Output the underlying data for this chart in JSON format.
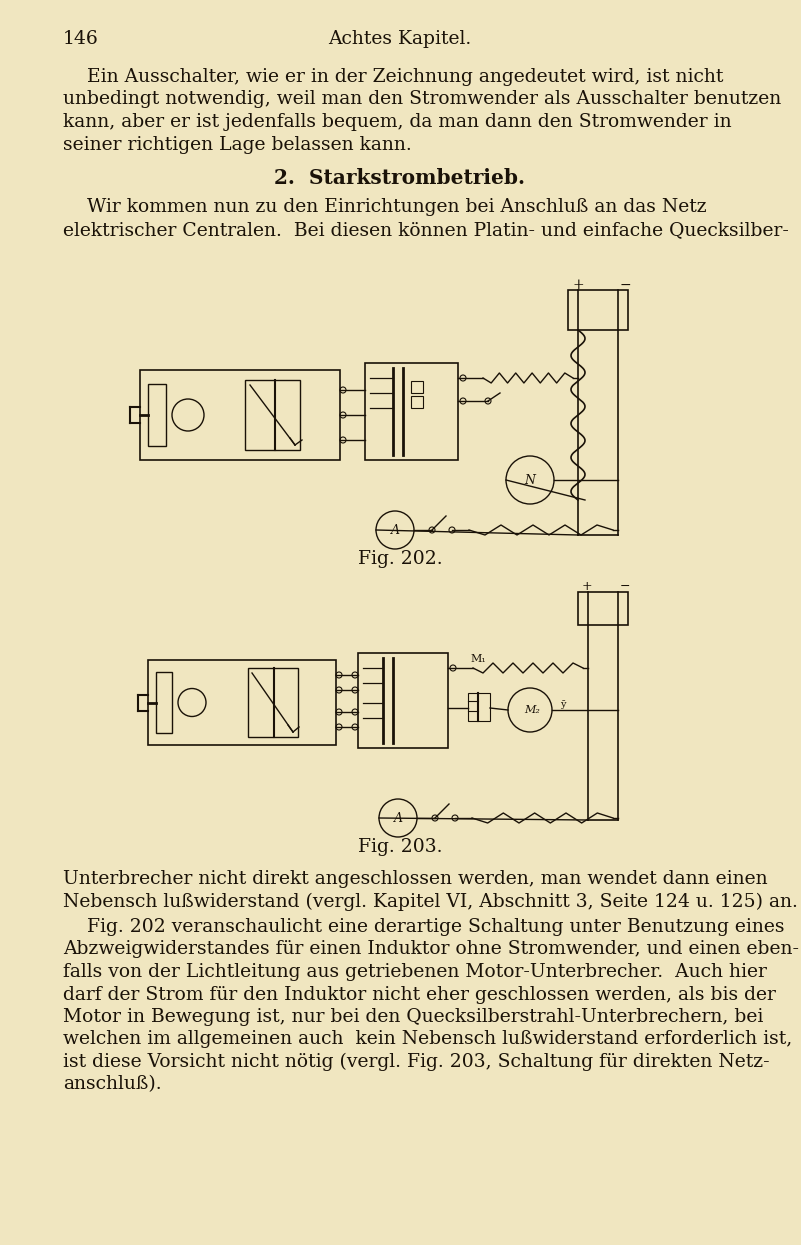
{
  "bg_color": "#f0e6c0",
  "text_color": "#1a1208",
  "page_number": "146",
  "header": "Achtes Kapitel.",
  "para1_lines": [
    "    Ein Ausschalter, wie er in der Zeichnung angedeutet wird, ist nicht",
    "unbedingt notwendig, weil man den Stromwender als Ausschalter benutzen",
    "kann, aber er ist jedenfalls bequem, da man dann den Stromwender in",
    "seiner richtigen Lage belassen kann."
  ],
  "section_title": "2.  Starkstrombetrieb.",
  "para2_lines": [
    "    Wir kommen nun zu den Einrichtungen bei Anschluß an das Netz",
    "elektrischer Centralen.  Bei diesen können Platin- und einfache Quecksilber-"
  ],
  "fig202_label": "Fig. 202.",
  "fig203_label": "Fig. 203.",
  "para3_lines": [
    "Unterbrecher nicht direkt angeschlossen werden, man wendet dann einen",
    "Nebensch lußwiderstand (vergl. Kapitel VI, Abschnitt 3, Seite 124 u. 125) an."
  ],
  "para4_lines": [
    "    Fig. 202 veranschaulicht eine derartige Schaltung unter Benutzung eines",
    "Abzweigwiderstandes für einen Induktor ohne Stromwender, und einen eben-",
    "falls von der Lichtleitung aus getriebenen Motor-Unterbrecher.  Auch hier",
    "darf der Strom für den Induktor nicht eher geschlossen werden, als bis der",
    "Motor in Bewegung ist, nur bei den Quecksilberstrahl-Unterbrechern, bei",
    "welchen im allgemeinen auch  kein Nebensch lußwiderstand erforderlich ist,",
    "ist diese Vorsicht nicht nötig (vergl. Fig. 203, Schaltung für direkten Netz-",
    "anschluß)."
  ],
  "line_color": "#1a1208",
  "font_size_body": 13.5,
  "font_size_header": 13.5,
  "font_size_section": 14.0
}
